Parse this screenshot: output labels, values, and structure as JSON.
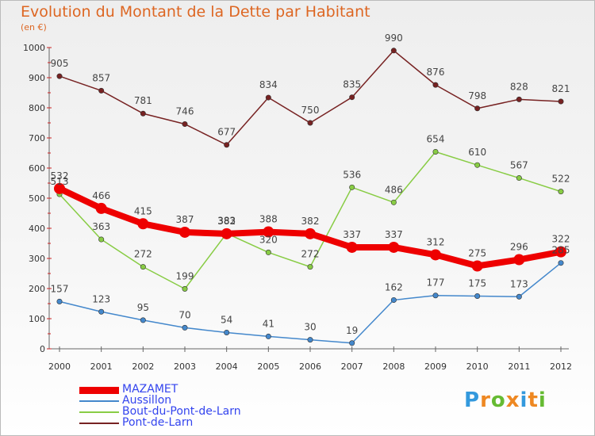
{
  "chart_data": {
    "type": "line",
    "title": "Evolution du Montant de la Dette par Habitant",
    "unit": "(en €)",
    "categories": [
      "2000",
      "2001",
      "2002",
      "2003",
      "2004",
      "2005",
      "2006",
      "2007",
      "2008",
      "2009",
      "2010",
      "2011",
      "2012"
    ],
    "ylim": [
      0,
      1000
    ],
    "yticks": [
      0,
      100,
      200,
      300,
      400,
      500,
      600,
      700,
      800,
      900,
      1000
    ],
    "grid": false,
    "legend_position": "bottom-left",
    "series": [
      {
        "name": "MAZAMET",
        "color": "#ee0000",
        "values": [
          532,
          466,
          415,
          387,
          382,
          388,
          382,
          337,
          337,
          312,
          275,
          296,
          322
        ]
      },
      {
        "name": "Aussillon",
        "color": "#4488cc",
        "values": [
          157,
          123,
          95,
          70,
          54,
          41,
          30,
          19,
          162,
          177,
          175,
          173,
          285
        ]
      },
      {
        "name": "Bout-du-Pont-de-Larn",
        "color": "#88cc44",
        "values": [
          513,
          363,
          272,
          199,
          383,
          320,
          272,
          536,
          486,
          654,
          610,
          567,
          522
        ]
      },
      {
        "name": "Pont-de-Larn",
        "color": "#772222",
        "values": [
          905,
          857,
          781,
          746,
          677,
          834,
          750,
          835,
          990,
          876,
          798,
          828,
          821
        ]
      }
    ]
  },
  "logo": {
    "text": "Proxiti",
    "colors": [
      "#3399dd",
      "#ee8822",
      "#66bb33",
      "#ee8822",
      "#3399dd",
      "#ee8822",
      "#66bb33"
    ]
  }
}
